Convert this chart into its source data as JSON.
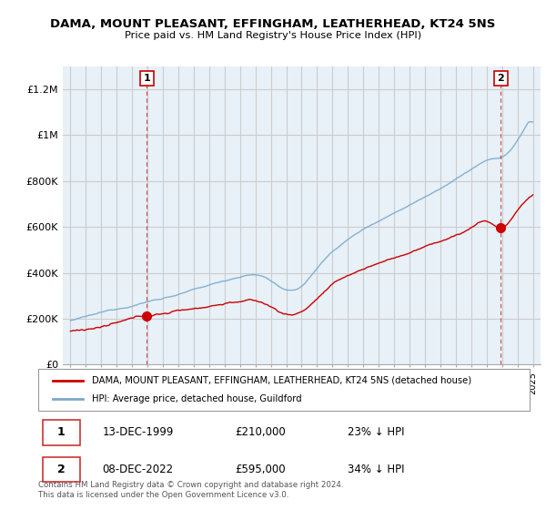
{
  "title": "DAMA, MOUNT PLEASANT, EFFINGHAM, LEATHERHEAD, KT24 5NS",
  "subtitle": "Price paid vs. HM Land Registry's House Price Index (HPI)",
  "legend_label_red": "DAMA, MOUNT PLEASANT, EFFINGHAM, LEATHERHEAD, KT24 5NS (detached house)",
  "legend_label_blue": "HPI: Average price, detached house, Guildford",
  "annotation1_date": "13-DEC-1999",
  "annotation1_price": "£210,000",
  "annotation1_hpi": "23% ↓ HPI",
  "annotation2_date": "08-DEC-2022",
  "annotation2_price": "£595,000",
  "annotation2_hpi": "34% ↓ HPI",
  "footer": "Contains HM Land Registry data © Crown copyright and database right 2024.\nThis data is licensed under the Open Government Licence v3.0.",
  "ylim": [
    0,
    1300000
  ],
  "yticks": [
    0,
    200000,
    400000,
    600000,
    800000,
    1000000,
    1200000
  ],
  "ytick_labels": [
    "£0",
    "£200K",
    "£400K",
    "£600K",
    "£800K",
    "£1M",
    "£1.2M"
  ],
  "color_red": "#cc0000",
  "color_blue": "#7aaacc",
  "background_plot": "#e8f0f8",
  "background_fig": "#ffffff",
  "grid_color": "#cccccc",
  "marker1_x": 1999.96,
  "marker1_y": 210000,
  "marker2_x": 2022.93,
  "marker2_y": 595000,
  "xmin": 1994.5,
  "xmax": 2025.5
}
